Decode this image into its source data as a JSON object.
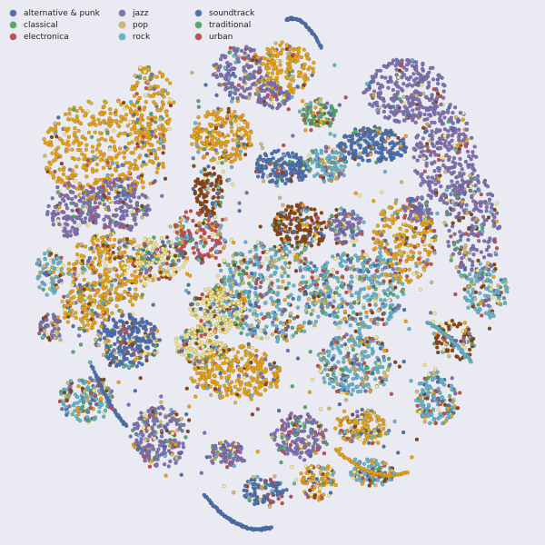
{
  "chart_data": {
    "type": "scatter",
    "title": "",
    "xlabel": "",
    "ylabel": "",
    "grid": false,
    "axes_visible": false,
    "legend_placement": "top-left",
    "series": [
      {
        "name": "alternative & punk",
        "color": "#4c72b0"
      },
      {
        "name": "classical",
        "color": "#55a868"
      },
      {
        "name": "electronica",
        "color": "#c44e52"
      },
      {
        "name": "jazz",
        "color": "#8172b2"
      },
      {
        "name": "pop",
        "color": "#ccb974"
      },
      {
        "name": "rock",
        "color": "#64b5cd"
      },
      {
        "name": "soundtrack",
        "color": "#4c72b0"
      },
      {
        "name": "traditional",
        "color": "#55a868"
      },
      {
        "name": "urban",
        "color": "#c44e52"
      }
    ],
    "visible_extra_colors": [
      "#e8a317",
      "#f0e68c",
      "#8b4513"
    ]
  }
}
